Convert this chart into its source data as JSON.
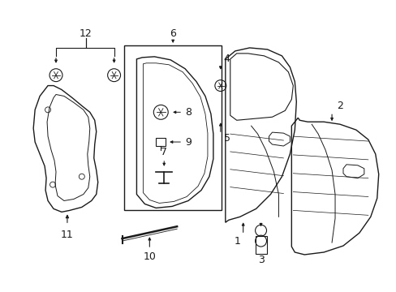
{
  "background_color": "#ffffff",
  "fig_width": 4.89,
  "fig_height": 3.6,
  "dpi": 100,
  "line_color": "#1a1a1a",
  "label_color": "#1a1a1a",
  "label_fontsize": 9
}
